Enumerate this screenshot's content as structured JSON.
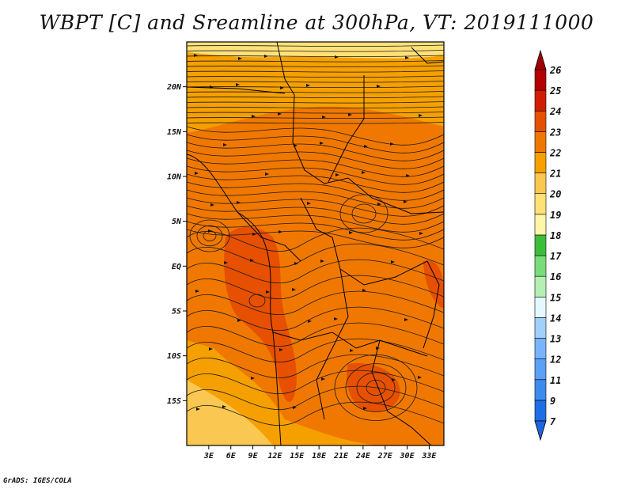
{
  "title": "WBPT [C] and Sreamline at 300hPa, VT: 2019111000",
  "credit": "GrADS: IGES/COLA",
  "map": {
    "region": "Central & Southern Africa",
    "lon_range": [
      0,
      35
    ],
    "lat_range": [
      -20,
      25
    ],
    "lat_ticks": [
      {
        "lat": 20,
        "label": "20N"
      },
      {
        "lat": 15,
        "label": "15N"
      },
      {
        "lat": 10,
        "label": "10N"
      },
      {
        "lat": 5,
        "label": "5N"
      },
      {
        "lat": 0,
        "label": "EQ"
      },
      {
        "lat": -5,
        "label": "5S"
      },
      {
        "lat": -10,
        "label": "10S"
      },
      {
        "lat": -15,
        "label": "15S"
      }
    ],
    "lon_ticks": [
      {
        "lon": 3,
        "label": "3E"
      },
      {
        "lon": 6,
        "label": "6E"
      },
      {
        "lon": 9,
        "label": "9E"
      },
      {
        "lon": 12,
        "label": "12E"
      },
      {
        "lon": 15,
        "label": "15E"
      },
      {
        "lon": 18,
        "label": "18E"
      },
      {
        "lon": 21,
        "label": "21E"
      },
      {
        "lon": 24,
        "label": "24E"
      },
      {
        "lon": 27,
        "label": "27E"
      },
      {
        "lon": 30,
        "label": "30E"
      },
      {
        "lon": 33,
        "label": "33E"
      }
    ]
  },
  "colorbar": {
    "labels": [
      "7",
      "9",
      "11",
      "12",
      "13",
      "14",
      "15",
      "16",
      "17",
      "18",
      "19",
      "20",
      "21",
      "22",
      "23",
      "24",
      "25",
      "26"
    ],
    "colors": [
      "#1e6ee6",
      "#3c8cf0",
      "#5aa0f5",
      "#78b4fa",
      "#a0d0fa",
      "#e6f8ff",
      "#b4f0b4",
      "#78dc78",
      "#3cbe3c",
      "#fff5a8",
      "#ffe178",
      "#fac850",
      "#f5a000",
      "#f07800",
      "#e65000",
      "#d21e00",
      "#b40000"
    ],
    "top_color": "#a00000",
    "bottom_color": "#1e64dc"
  },
  "field_colors": {
    "c20": "#fac850",
    "c21": "#f5a000",
    "c22": "#f07800",
    "c23": "#e65000",
    "c19": "#ffe178"
  }
}
